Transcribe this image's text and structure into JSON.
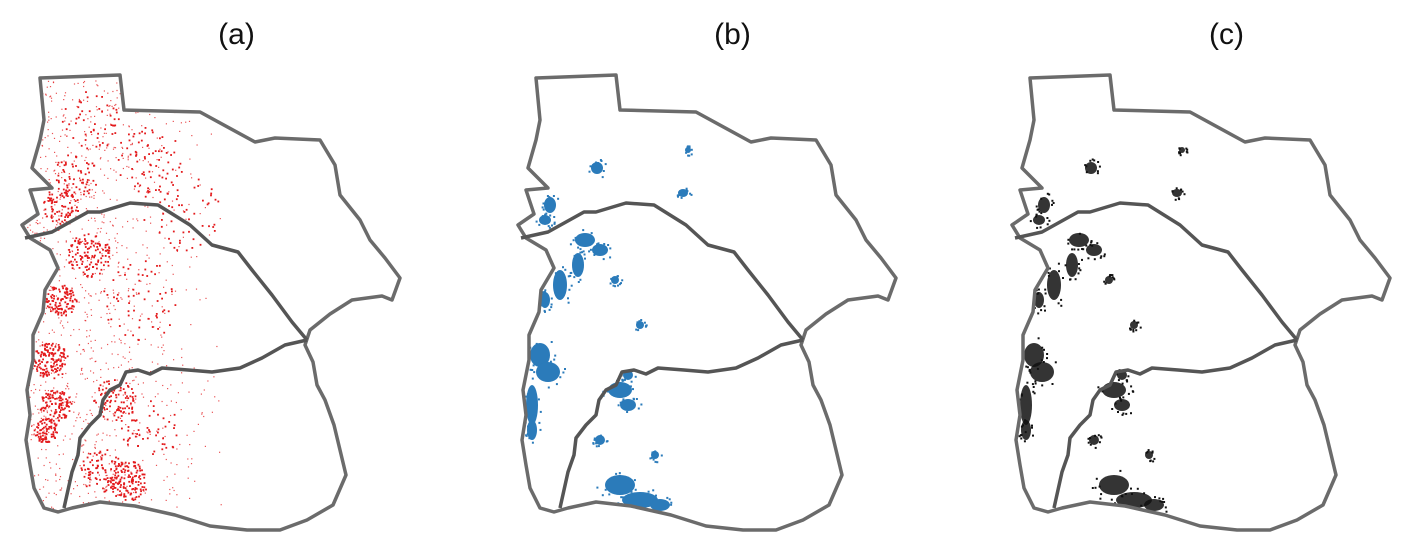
{
  "panels": [
    {
      "label": "(a)",
      "fill_color": "#e31a1c",
      "style": "dots"
    },
    {
      "label": "(b)",
      "fill_color": "#2b7bba",
      "style": "patches"
    },
    {
      "label": "(c)",
      "fill_color": "#111111",
      "style": "patches"
    }
  ],
  "boundary_color": "#6b6b6b"
}
